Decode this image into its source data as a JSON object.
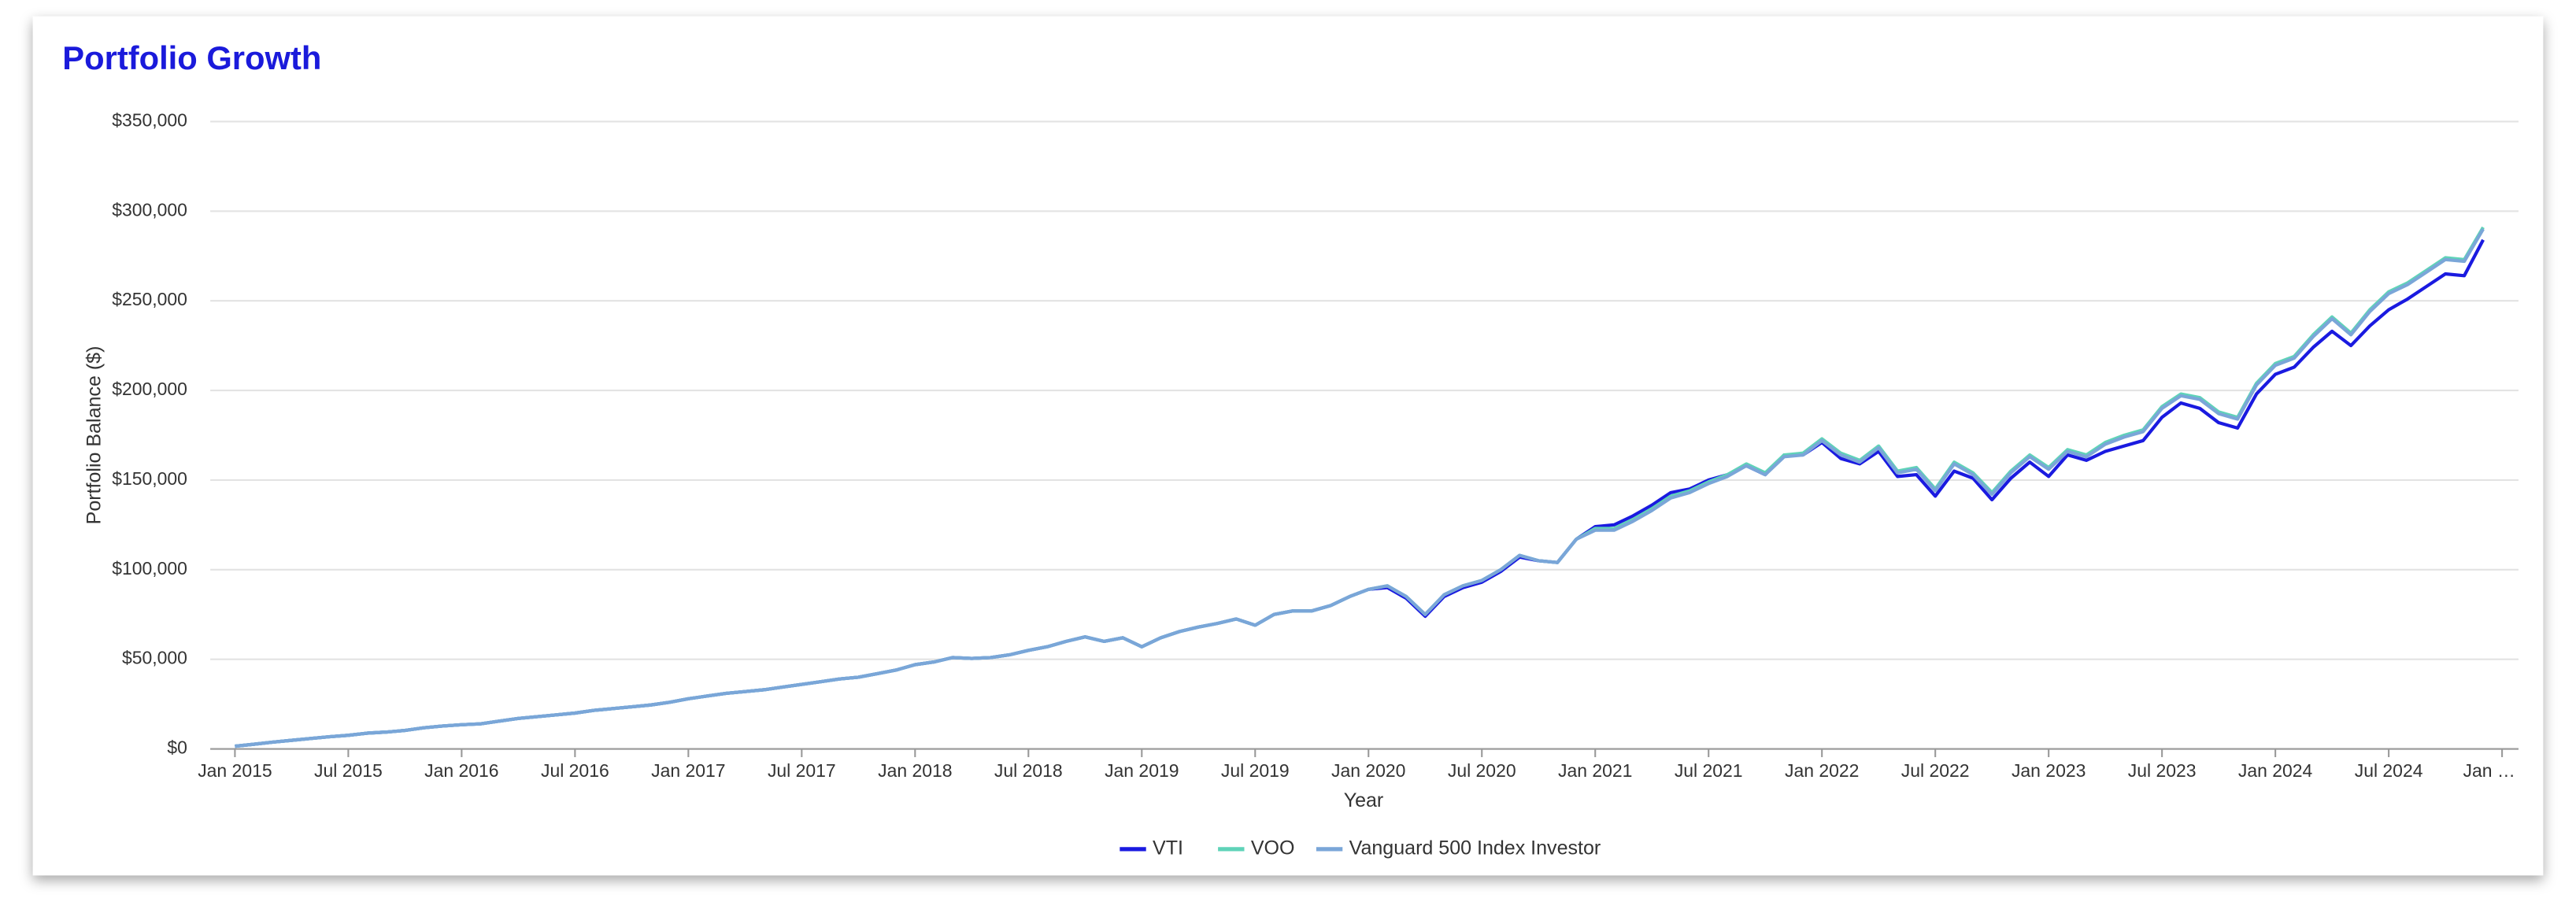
{
  "chart_data": {
    "type": "line",
    "title": "Portfolio Growth",
    "x_label": "Year",
    "y_label": "Portfolio Balance ($)",
    "x": [
      "2015-01",
      "2015-02",
      "2015-03",
      "2015-04",
      "2015-05",
      "2015-06",
      "2015-07",
      "2015-08",
      "2015-09",
      "2015-10",
      "2015-11",
      "2015-12",
      "2016-01",
      "2016-02",
      "2016-03",
      "2016-04",
      "2016-05",
      "2016-06",
      "2016-07",
      "2016-08",
      "2016-09",
      "2016-10",
      "2016-11",
      "2016-12",
      "2017-01",
      "2017-02",
      "2017-03",
      "2017-04",
      "2017-05",
      "2017-06",
      "2017-07",
      "2017-08",
      "2017-09",
      "2017-10",
      "2017-11",
      "2017-12",
      "2018-01",
      "2018-02",
      "2018-03",
      "2018-04",
      "2018-05",
      "2018-06",
      "2018-07",
      "2018-08",
      "2018-09",
      "2018-10",
      "2018-11",
      "2018-12",
      "2019-01",
      "2019-02",
      "2019-03",
      "2019-04",
      "2019-05",
      "2019-06",
      "2019-07",
      "2019-08",
      "2019-09",
      "2019-10",
      "2019-11",
      "2019-12",
      "2020-01",
      "2020-02",
      "2020-03",
      "2020-04",
      "2020-05",
      "2020-06",
      "2020-07",
      "2020-08",
      "2020-09",
      "2020-10",
      "2020-11",
      "2020-12",
      "2021-01",
      "2021-02",
      "2021-03",
      "2021-04",
      "2021-05",
      "2021-06",
      "2021-07",
      "2021-08",
      "2021-09",
      "2021-10",
      "2021-11",
      "2021-12",
      "2022-01",
      "2022-02",
      "2022-03",
      "2022-04",
      "2022-05",
      "2022-06",
      "2022-07",
      "2022-08",
      "2022-09",
      "2022-10",
      "2022-11",
      "2022-12",
      "2023-01",
      "2023-02",
      "2023-03",
      "2023-04",
      "2023-05",
      "2023-06",
      "2023-07",
      "2023-08",
      "2023-09",
      "2023-10",
      "2023-11",
      "2023-12",
      "2024-01",
      "2024-02",
      "2024-03",
      "2024-04",
      "2024-05",
      "2024-06",
      "2024-07",
      "2024-08",
      "2024-09",
      "2024-10",
      "2024-11",
      "2024-12"
    ],
    "xlim": [
      "2015-01",
      "2025-01"
    ],
    "xticks": [
      {
        "value": "2015-01",
        "label": "Jan 2015"
      },
      {
        "value": "2015-07",
        "label": "Jul 2015"
      },
      {
        "value": "2016-01",
        "label": "Jan 2016"
      },
      {
        "value": "2016-07",
        "label": "Jul 2016"
      },
      {
        "value": "2017-01",
        "label": "Jan 2017"
      },
      {
        "value": "2017-07",
        "label": "Jul 2017"
      },
      {
        "value": "2018-01",
        "label": "Jan 2018"
      },
      {
        "value": "2018-07",
        "label": "Jul 2018"
      },
      {
        "value": "2019-01",
        "label": "Jan 2019"
      },
      {
        "value": "2019-07",
        "label": "Jul 2019"
      },
      {
        "value": "2020-01",
        "label": "Jan 2020"
      },
      {
        "value": "2020-07",
        "label": "Jul 2020"
      },
      {
        "value": "2021-01",
        "label": "Jan 2021"
      },
      {
        "value": "2021-07",
        "label": "Jul 2021"
      },
      {
        "value": "2022-01",
        "label": "Jan 2022"
      },
      {
        "value": "2022-07",
        "label": "Jul 2022"
      },
      {
        "value": "2023-01",
        "label": "Jan 2023"
      },
      {
        "value": "2023-07",
        "label": "Jul 2023"
      },
      {
        "value": "2024-01",
        "label": "Jan 2024"
      },
      {
        "value": "2024-07",
        "label": "Jul 2024"
      },
      {
        "value": "2025-01",
        "label": "Jan …"
      }
    ],
    "ylim": [
      0,
      350000
    ],
    "yticks": [
      {
        "value": 0,
        "label": "$0"
      },
      {
        "value": 50000,
        "label": "$50,000"
      },
      {
        "value": 100000,
        "label": "$100,000"
      },
      {
        "value": 150000,
        "label": "$150,000"
      },
      {
        "value": 200000,
        "label": "$200,000"
      },
      {
        "value": 250000,
        "label": "$250,000"
      },
      {
        "value": 300000,
        "label": "$300,000"
      },
      {
        "value": 350000,
        "label": "$350,000"
      }
    ],
    "grid": true,
    "legend": "bottom",
    "series": [
      {
        "name": "VTI",
        "color": "#1a1ae0",
        "values": [
          1500,
          2600,
          3800,
          4800,
          5800,
          6800,
          7600,
          8800,
          9400,
          10300,
          11800,
          12800,
          13500,
          14000,
          15500,
          17000,
          18000,
          19000,
          20000,
          21500,
          22500,
          23500,
          24500,
          26000,
          28000,
          29500,
          31000,
          32000,
          33000,
          34500,
          36000,
          37500,
          39000,
          40000,
          42000,
          44000,
          47000,
          48500,
          51000,
          50500,
          51000,
          52500,
          55000,
          57000,
          60000,
          62500,
          60000,
          62000,
          57000,
          62000,
          65500,
          68000,
          70000,
          72500,
          69000,
          75000,
          77000,
          77000,
          80000,
          85000,
          89000,
          90000,
          84000,
          74000,
          85000,
          90000,
          93000,
          99000,
          107000,
          105000,
          104000,
          117000,
          124000,
          125000,
          130000,
          136000,
          143000,
          145000,
          150000,
          153000,
          158000,
          153000,
          164000,
          164000,
          171000,
          162000,
          159000,
          166000,
          152000,
          153000,
          141000,
          155000,
          151000,
          139000,
          151000,
          160000,
          152000,
          164000,
          161000,
          166000,
          169000,
          172000,
          185000,
          193000,
          190000,
          182000,
          179000,
          198000,
          209000,
          213000,
          224000,
          233000,
          225000,
          236000,
          245000,
          251000,
          258000,
          265000,
          264000,
          284000
        ]
      },
      {
        "name": "VOO",
        "color": "#5fd3b8",
        "values": [
          1500,
          2600,
          3800,
          4800,
          5800,
          6800,
          7600,
          8800,
          9400,
          10300,
          11800,
          12800,
          13500,
          14000,
          15500,
          17000,
          18000,
          19000,
          20000,
          21500,
          22500,
          23500,
          24500,
          26000,
          28000,
          29500,
          31000,
          32000,
          33000,
          34500,
          36000,
          37500,
          39000,
          40000,
          42000,
          44000,
          47000,
          48500,
          51000,
          50500,
          51000,
          52500,
          55000,
          57000,
          60000,
          62500,
          60000,
          62000,
          57000,
          62000,
          65500,
          68000,
          70000,
          72500,
          69000,
          75000,
          77000,
          77000,
          80000,
          85000,
          89000,
          91000,
          85000,
          75000,
          86000,
          91000,
          94000,
          100000,
          108000,
          105000,
          104000,
          117000,
          123000,
          123000,
          128000,
          134000,
          141000,
          144000,
          149000,
          153000,
          159000,
          154000,
          164000,
          165000,
          173000,
          165000,
          161000,
          169000,
          155000,
          157000,
          145000,
          160000,
          154000,
          143000,
          155000,
          164000,
          157000,
          167000,
          164000,
          171000,
          175000,
          178000,
          191000,
          198000,
          196000,
          188000,
          185000,
          204000,
          215000,
          219000,
          231000,
          241000,
          232000,
          245000,
          255000,
          260000,
          267000,
          274000,
          273000,
          291000
        ]
      },
      {
        "name": "Vanguard 500 Index Investor",
        "color": "#7aa6d8",
        "values": [
          1500,
          2600,
          3800,
          4800,
          5800,
          6800,
          7600,
          8800,
          9400,
          10300,
          11800,
          12800,
          13500,
          14000,
          15500,
          17000,
          18000,
          19000,
          20000,
          21500,
          22500,
          23500,
          24500,
          26000,
          28000,
          29500,
          31000,
          32000,
          33000,
          34500,
          36000,
          37500,
          39000,
          40000,
          42000,
          44000,
          47000,
          48500,
          51000,
          50500,
          51000,
          52500,
          55000,
          57000,
          60000,
          62500,
          60000,
          62000,
          57000,
          62000,
          65500,
          68000,
          70000,
          72500,
          69000,
          75000,
          77000,
          77000,
          80000,
          85000,
          89000,
          91000,
          85000,
          75000,
          86000,
          91000,
          94000,
          100000,
          108000,
          105000,
          104000,
          117000,
          122000,
          122000,
          127000,
          133000,
          140000,
          143000,
          148000,
          152000,
          158000,
          153000,
          163000,
          164000,
          172000,
          164000,
          160000,
          168000,
          154000,
          156000,
          144000,
          159000,
          153000,
          142000,
          154000,
          163000,
          156000,
          166000,
          163000,
          170000,
          174000,
          177000,
          190000,
          197000,
          195000,
          187000,
          184000,
          203000,
          214000,
          218000,
          230000,
          240000,
          231000,
          244000,
          254000,
          259000,
          266000,
          273000,
          272000,
          290000
        ]
      }
    ]
  }
}
